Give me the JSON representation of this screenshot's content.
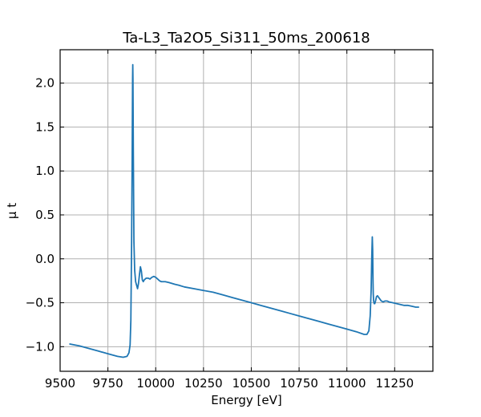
{
  "chart_data": {
    "type": "line",
    "title": "Ta-L3_Ta2O5_Si311_50ms_200618",
    "xlabel": "Energy [eV]",
    "ylabel": "μ t",
    "xlim": [
      9500,
      11450
    ],
    "ylim": [
      -1.28,
      2.38
    ],
    "xticks": [
      9500,
      9750,
      10000,
      10250,
      10500,
      10750,
      11000,
      11250
    ],
    "yticks": [
      -1.0,
      -0.5,
      0.0,
      0.5,
      1.0,
      1.5,
      2.0
    ],
    "xtick_labels": [
      "9500",
      "9750",
      "10000",
      "10250",
      "10500",
      "10750",
      "11000",
      "11250"
    ],
    "ytick_labels": [
      "−1.0",
      "−0.5",
      "0.0",
      "0.5",
      "1.0",
      "1.5",
      "2.0"
    ],
    "grid": true,
    "color": "#1f77b4",
    "series": [
      {
        "x": [
          9551,
          9600,
          9650,
          9700,
          9750,
          9800,
          9830,
          9850,
          9860,
          9866,
          9870,
          9874,
          9877,
          9879,
          9880,
          9881,
          9883,
          9886,
          9890,
          9895,
          9900,
          9905,
          9910,
          9915,
          9920,
          9925,
          9930,
          9935,
          9940,
          9950,
          9960,
          9970,
          9980,
          9990,
          10000,
          10010,
          10020,
          10030,
          10050,
          10070,
          10100,
          10120,
          10150,
          10200,
          10250,
          10300,
          10350,
          10400,
          10450,
          10500,
          10550,
          10600,
          10650,
          10700,
          10750,
          10800,
          10850,
          10900,
          10950,
          11000,
          11050,
          11090,
          11105,
          11115,
          11122,
          11127,
          11130,
          11133,
          11135,
          11136,
          11137,
          11138,
          11140,
          11143,
          11146,
          11150,
          11155,
          11160,
          11170,
          11180,
          11190,
          11200,
          11210,
          11220,
          11240,
          11260,
          11280,
          11300,
          11320,
          11340,
          11360,
          11375
        ],
        "y": [
          -0.97,
          -0.99,
          -1.02,
          -1.05,
          -1.08,
          -1.11,
          -1.12,
          -1.11,
          -1.07,
          -0.98,
          -0.7,
          0.2,
          1.2,
          2.05,
          2.21,
          2.05,
          1.2,
          0.2,
          -0.13,
          -0.26,
          -0.3,
          -0.34,
          -0.28,
          -0.18,
          -0.09,
          -0.14,
          -0.24,
          -0.26,
          -0.24,
          -0.22,
          -0.22,
          -0.23,
          -0.21,
          -0.2,
          -0.21,
          -0.23,
          -0.25,
          -0.26,
          -0.26,
          -0.27,
          -0.29,
          -0.3,
          -0.32,
          -0.34,
          -0.36,
          -0.38,
          -0.41,
          -0.44,
          -0.47,
          -0.5,
          -0.53,
          -0.56,
          -0.59,
          -0.62,
          -0.65,
          -0.68,
          -0.71,
          -0.74,
          -0.77,
          -0.8,
          -0.83,
          -0.86,
          -0.86,
          -0.82,
          -0.65,
          -0.35,
          0.0,
          0.25,
          0.1,
          -0.1,
          -0.28,
          -0.4,
          -0.48,
          -0.51,
          -0.51,
          -0.48,
          -0.43,
          -0.42,
          -0.45,
          -0.48,
          -0.49,
          -0.48,
          -0.48,
          -0.49,
          -0.5,
          -0.51,
          -0.52,
          -0.53,
          -0.53,
          -0.54,
          -0.55,
          -0.55
        ]
      }
    ]
  }
}
